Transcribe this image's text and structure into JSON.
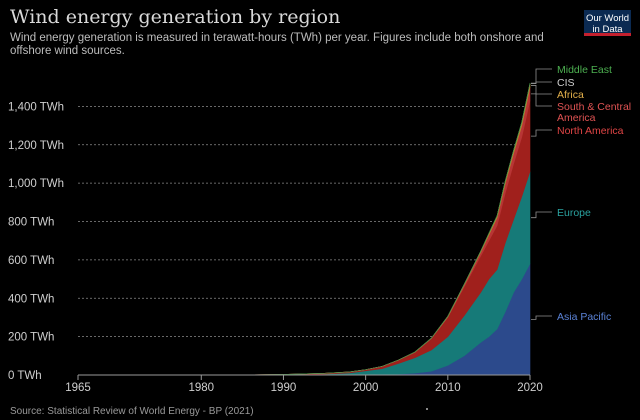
{
  "header": {
    "title": "Wind energy generation by region",
    "subtitle": "Wind energy generation is measured in terawatt-hours (TWh) per year. Figures include both onshore and offshore wind sources.",
    "logo_line1": "Our World",
    "logo_line2": "in Data"
  },
  "footer": {
    "source": "Source: Statistical Review of World Energy - BP (2021)"
  },
  "colors": {
    "background": "#000000",
    "Asia Pacific": "#2c4a8c",
    "Europe": "#167a78",
    "North America": "#a0201c",
    "South & Central America": "#b83535",
    "Africa": "#b8862b",
    "CIS": "#9a9a9a",
    "Middle East": "#3a8c3a"
  },
  "chart_data": {
    "type": "area",
    "stacked": true,
    "x_ticks": [
      1965,
      1980,
      1990,
      2000,
      2010,
      2020
    ],
    "y_ticks": [
      0,
      200,
      400,
      600,
      800,
      1000,
      1200,
      1400
    ],
    "y_tick_labels": [
      "0 TWh",
      "200 TWh",
      "400 TWh",
      "600 TWh",
      "800 TWh",
      "1,000 TWh",
      "1,200 TWh",
      "1,400 TWh"
    ],
    "xlim": [
      1965,
      2020
    ],
    "ylim": [
      0,
      1600
    ],
    "grid": "horizontal-dotted",
    "legend": "right-end-labels",
    "x": [
      1965,
      1985,
      1990,
      1995,
      1998,
      2000,
      2002,
      2004,
      2006,
      2008,
      2010,
      2012,
      2014,
      2015,
      2016,
      2017,
      2018,
      2019,
      2020
    ],
    "series": [
      {
        "name": "Asia Pacific",
        "values": [
          0,
          0,
          0,
          1,
          1,
          2,
          3,
          5,
          10,
          20,
          50,
          100,
          170,
          200,
          240,
          330,
          430,
          500,
          580
        ]
      },
      {
        "name": "Europe",
        "values": [
          0,
          0,
          1,
          4,
          10,
          20,
          30,
          55,
          80,
          110,
          150,
          210,
          260,
          300,
          310,
          360,
          380,
          430,
          480
        ]
      },
      {
        "name": "North America",
        "values": [
          0,
          0,
          2,
          4,
          5,
          6,
          12,
          18,
          28,
          60,
          100,
          150,
          190,
          200,
          230,
          260,
          290,
          310,
          370
        ]
      },
      {
        "name": "South & Central America",
        "values": [
          0,
          0,
          0,
          0,
          0,
          0,
          0,
          0,
          1,
          1,
          4,
          10,
          20,
          30,
          40,
          50,
          55,
          60,
          70
        ]
      },
      {
        "name": "Africa",
        "values": [
          0,
          0,
          0,
          0,
          0,
          0,
          0,
          0,
          1,
          1,
          2,
          3,
          5,
          8,
          10,
          12,
          14,
          16,
          18
        ]
      },
      {
        "name": "CIS",
        "values": [
          0,
          0,
          0,
          0,
          0,
          0,
          0,
          0,
          0,
          0,
          0,
          0,
          0,
          0,
          0,
          0,
          1,
          1,
          2
        ]
      },
      {
        "name": "Middle East",
        "values": [
          0,
          0,
          0,
          0,
          0,
          0,
          0,
          0,
          0,
          0,
          0,
          0,
          0,
          1,
          1,
          1,
          1,
          2,
          2
        ]
      }
    ]
  }
}
